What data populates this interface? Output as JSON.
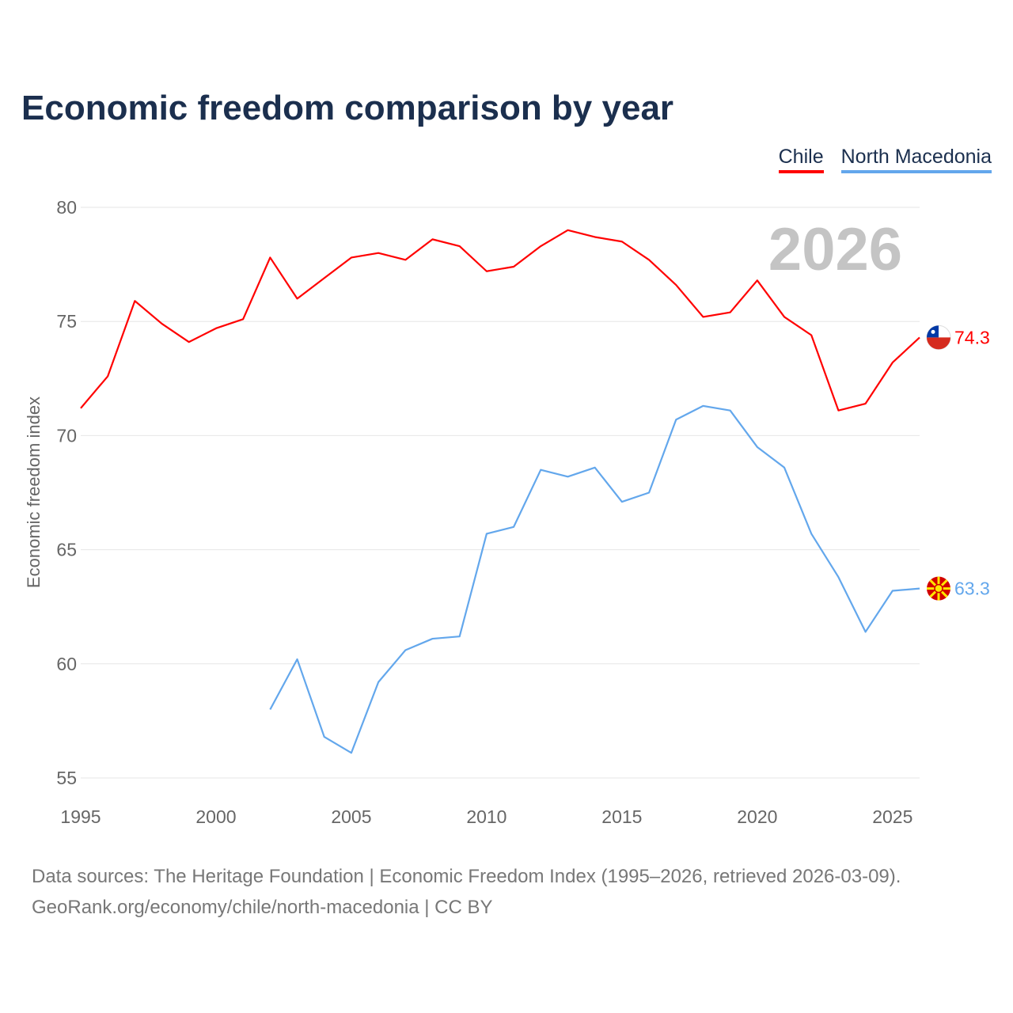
{
  "title": "Economic freedom comparison by year",
  "colors": {
    "Chile": "#ff0000",
    "North Macedonia": "#63a7ec"
  },
  "chart_data": {
    "type": "line",
    "title": "Economic freedom comparison by year",
    "xlabel": "",
    "ylabel": "Economic freedom index",
    "xlim": [
      1995,
      2026
    ],
    "ylim": [
      55,
      80
    ],
    "xticks": [
      1995,
      2000,
      2005,
      2010,
      2015,
      2020,
      2025
    ],
    "yticks": [
      55,
      60,
      65,
      70,
      75,
      80
    ],
    "grid": true,
    "legend_position": "top-right",
    "year_label": "2026",
    "series": [
      {
        "name": "Chile",
        "end_label": "74.3",
        "x": [
          1995,
          1996,
          1997,
          1998,
          1999,
          2000,
          2001,
          2002,
          2003,
          2004,
          2005,
          2006,
          2007,
          2008,
          2009,
          2010,
          2011,
          2012,
          2013,
          2014,
          2015,
          2016,
          2017,
          2018,
          2019,
          2020,
          2021,
          2022,
          2023,
          2024,
          2025,
          2026
        ],
        "values": [
          71.2,
          72.6,
          75.9,
          74.9,
          74.1,
          74.7,
          75.1,
          77.8,
          76.0,
          76.9,
          77.8,
          78.0,
          77.7,
          78.6,
          78.3,
          77.2,
          77.4,
          78.3,
          79.0,
          78.7,
          78.5,
          77.7,
          76.6,
          75.2,
          75.4,
          76.8,
          75.2,
          74.4,
          71.1,
          71.4,
          73.2,
          74.3
        ]
      },
      {
        "name": "North Macedonia",
        "end_label": "63.3",
        "x": [
          2002,
          2003,
          2004,
          2005,
          2006,
          2007,
          2008,
          2009,
          2010,
          2011,
          2012,
          2013,
          2014,
          2015,
          2016,
          2017,
          2018,
          2019,
          2020,
          2021,
          2022,
          2023,
          2024,
          2025,
          2026
        ],
        "values": [
          58.0,
          60.2,
          56.8,
          56.1,
          59.2,
          60.6,
          61.1,
          61.2,
          65.7,
          66.0,
          68.5,
          68.2,
          68.6,
          67.1,
          67.5,
          70.7,
          71.3,
          71.1,
          69.5,
          68.6,
          65.7,
          63.8,
          61.4,
          63.2,
          63.3
        ]
      }
    ]
  },
  "source_lines": [
    "Data sources: The Heritage Foundation | Economic Freedom Index (1995–2026, retrieved 2026-03-09).",
    "GeoRank.org/economy/chile/north-macedonia | CC BY"
  ]
}
